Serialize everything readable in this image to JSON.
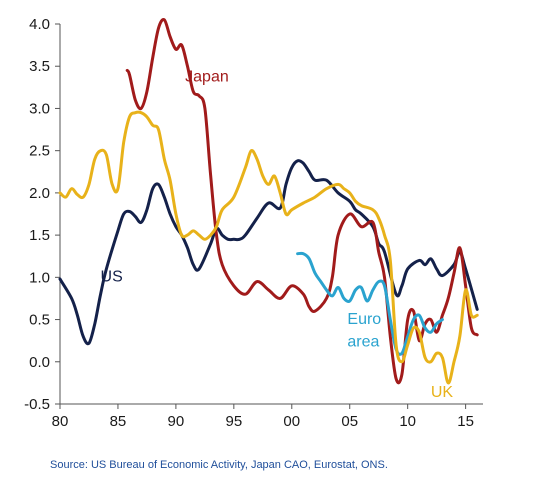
{
  "colors": {
    "us": "#14214a",
    "japan": "#a11b1b",
    "euro": "#2aa3cf",
    "uk": "#e8b21a",
    "axis": "#555555",
    "source_text": "#1f4e9a"
  },
  "chart_data": {
    "type": "line",
    "title": "",
    "xlabel": "",
    "ylabel": "",
    "xlim": [
      1980,
      2016.5
    ],
    "ylim": [
      -0.5,
      4.0
    ],
    "x_ticks": [
      1980,
      1985,
      1990,
      1995,
      2000,
      2005,
      2010,
      2015
    ],
    "x_tick_labels": [
      "80",
      "85",
      "90",
      "95",
      "00",
      "05",
      "10",
      "15"
    ],
    "y_ticks": [
      -0.5,
      0.0,
      0.5,
      1.0,
      1.5,
      2.0,
      2.5,
      3.0,
      3.5,
      4.0
    ],
    "y_tick_labels": [
      "-0.5",
      "0.0",
      "0.5",
      "1.0",
      "1.5",
      "2.0",
      "2.5",
      "3.0",
      "3.5",
      "4.0"
    ],
    "grid": false,
    "series": [
      {
        "key": "us",
        "name": "US",
        "x": [
          1980,
          1981,
          1981.5,
          1982,
          1982.5,
          1983,
          1983.5,
          1984,
          1985,
          1985.5,
          1986,
          1986.5,
          1987,
          1987.5,
          1988,
          1988.5,
          1989,
          1989.5,
          1990,
          1990.5,
          1991,
          1991.5,
          1992,
          1993,
          1993.5,
          1994,
          1994.5,
          1995,
          1995.5,
          1996,
          1997,
          1998,
          1999,
          1999.5,
          2000,
          2000.5,
          2001,
          2001.5,
          2002,
          2003,
          2004,
          2005,
          2005.5,
          2006,
          2007,
          2007.5,
          2008,
          2009,
          2009.5,
          2010,
          2011,
          2011.5,
          2012,
          2012.5,
          2013,
          2014,
          2014.5,
          2015,
          2016
        ],
        "values": [
          0.98,
          0.75,
          0.55,
          0.3,
          0.22,
          0.45,
          0.8,
          1.1,
          1.55,
          1.75,
          1.78,
          1.72,
          1.65,
          1.8,
          2.05,
          2.1,
          1.95,
          1.75,
          1.6,
          1.5,
          1.35,
          1.15,
          1.1,
          1.4,
          1.58,
          1.5,
          1.45,
          1.45,
          1.45,
          1.5,
          1.7,
          1.88,
          1.82,
          2.1,
          2.3,
          2.38,
          2.35,
          2.25,
          2.15,
          2.15,
          2.0,
          1.9,
          1.8,
          1.75,
          1.6,
          1.4,
          1.3,
          0.8,
          0.9,
          1.1,
          1.2,
          1.15,
          1.22,
          1.1,
          1.02,
          1.15,
          1.3,
          1.1,
          0.62
        ]
      },
      {
        "key": "japan",
        "name": "Japan",
        "x": [
          1985.8,
          1986,
          1986.5,
          1987,
          1987.5,
          1988,
          1988.5,
          1989,
          1989.5,
          1990,
          1990.5,
          1991,
          1991.5,
          1992,
          1992.5,
          1993,
          1993.5,
          1994,
          1995,
          1996,
          1997,
          1998,
          1999,
          2000,
          2001,
          2001.5,
          2002,
          2003,
          2003.5,
          2004,
          2005,
          2006,
          2007,
          2007.5,
          2008,
          2008.5,
          2009,
          2009.5,
          2010,
          2010.5,
          2011,
          2011.5,
          2012,
          2012.5,
          2013,
          2013.5,
          2014,
          2014.5,
          2015,
          2015.5,
          2016
        ],
        "values": [
          3.45,
          3.4,
          3.1,
          3.0,
          3.2,
          3.6,
          3.95,
          4.05,
          3.85,
          3.7,
          3.75,
          3.5,
          3.2,
          3.15,
          3.0,
          2.2,
          1.5,
          1.15,
          0.9,
          0.8,
          0.95,
          0.85,
          0.75,
          0.9,
          0.8,
          0.65,
          0.6,
          0.75,
          1.0,
          1.5,
          1.75,
          1.6,
          1.65,
          1.3,
          1.0,
          0.3,
          -0.2,
          -0.15,
          0.5,
          0.6,
          0.25,
          0.45,
          0.5,
          0.35,
          0.55,
          0.75,
          1.05,
          1.35,
          0.9,
          0.4,
          0.32
        ]
      },
      {
        "key": "euro",
        "name": "Euro area",
        "x": [
          2000.5,
          2001,
          2001.5,
          2002,
          2002.5,
          2003,
          2003.5,
          2004,
          2004.5,
          2005,
          2005.5,
          2006,
          2006.5,
          2007,
          2007.5,
          2008,
          2008.5,
          2009,
          2009.5,
          2010,
          2010.5,
          2011,
          2011.5,
          2012,
          2012.5,
          2013
        ],
        "values": [
          1.28,
          1.28,
          1.22,
          1.05,
          0.95,
          0.85,
          0.78,
          0.88,
          0.75,
          0.72,
          0.85,
          0.88,
          0.72,
          0.85,
          0.95,
          0.9,
          0.5,
          0.15,
          0.1,
          0.3,
          0.5,
          0.55,
          0.4,
          0.35,
          0.45,
          0.5
        ]
      },
      {
        "key": "uk",
        "name": "UK",
        "x": [
          1980,
          1980.5,
          1981,
          1981.5,
          1982,
          1982.5,
          1983,
          1983.5,
          1984,
          1984.5,
          1985,
          1985.5,
          1986,
          1986.5,
          1987,
          1987.5,
          1988,
          1988.5,
          1989,
          1989.5,
          1990,
          1990.5,
          1991,
          1991.5,
          1992,
          1992.5,
          1993,
          1993.5,
          1994,
          1995,
          1996,
          1996.5,
          1997,
          1997.5,
          1998,
          1998.5,
          1999,
          1999.5,
          2000,
          2001,
          2002,
          2003,
          2004,
          2004.5,
          2005,
          2005.5,
          2006,
          2007,
          2007.5,
          2008,
          2008.5,
          2009,
          2009.5,
          2010,
          2010.5,
          2011,
          2011.5,
          2012,
          2012.5,
          2013,
          2013.5,
          2014,
          2014.5,
          2015,
          2015.5,
          2016
        ],
        "values": [
          2.0,
          1.95,
          2.05,
          1.98,
          1.95,
          2.1,
          2.4,
          2.5,
          2.45,
          2.1,
          2.05,
          2.6,
          2.9,
          2.95,
          2.95,
          2.9,
          2.8,
          2.75,
          2.4,
          2.15,
          1.75,
          1.5,
          1.5,
          1.55,
          1.5,
          1.45,
          1.5,
          1.6,
          1.8,
          1.95,
          2.3,
          2.5,
          2.4,
          2.2,
          2.1,
          2.2,
          2.0,
          1.75,
          1.8,
          1.88,
          1.95,
          2.05,
          2.1,
          2.05,
          2.0,
          1.9,
          1.85,
          1.8,
          1.7,
          1.5,
          1.2,
          0.2,
          0.0,
          0.2,
          0.4,
          0.35,
          0.05,
          0.0,
          0.1,
          0.05,
          -0.25,
          0.0,
          0.3,
          0.85,
          0.55,
          0.55
        ]
      }
    ],
    "annotations": [
      {
        "key": "japan",
        "text": "Japan",
        "x": 1990.8,
        "y": 3.32
      },
      {
        "key": "us",
        "text": "US",
        "x": 1983.5,
        "y": 0.95
      },
      {
        "key": "euro",
        "text": "Euro",
        "x": 2004.8,
        "y": 0.45
      },
      {
        "key": "euro",
        "text": "area",
        "x": 2004.8,
        "y": 0.18
      },
      {
        "key": "uk",
        "text": "UK",
        "x": 2012.0,
        "y": -0.42
      }
    ]
  },
  "source": "Source: US Bureau of Economic Activity, Japan CAO, Eurostat, ONS."
}
